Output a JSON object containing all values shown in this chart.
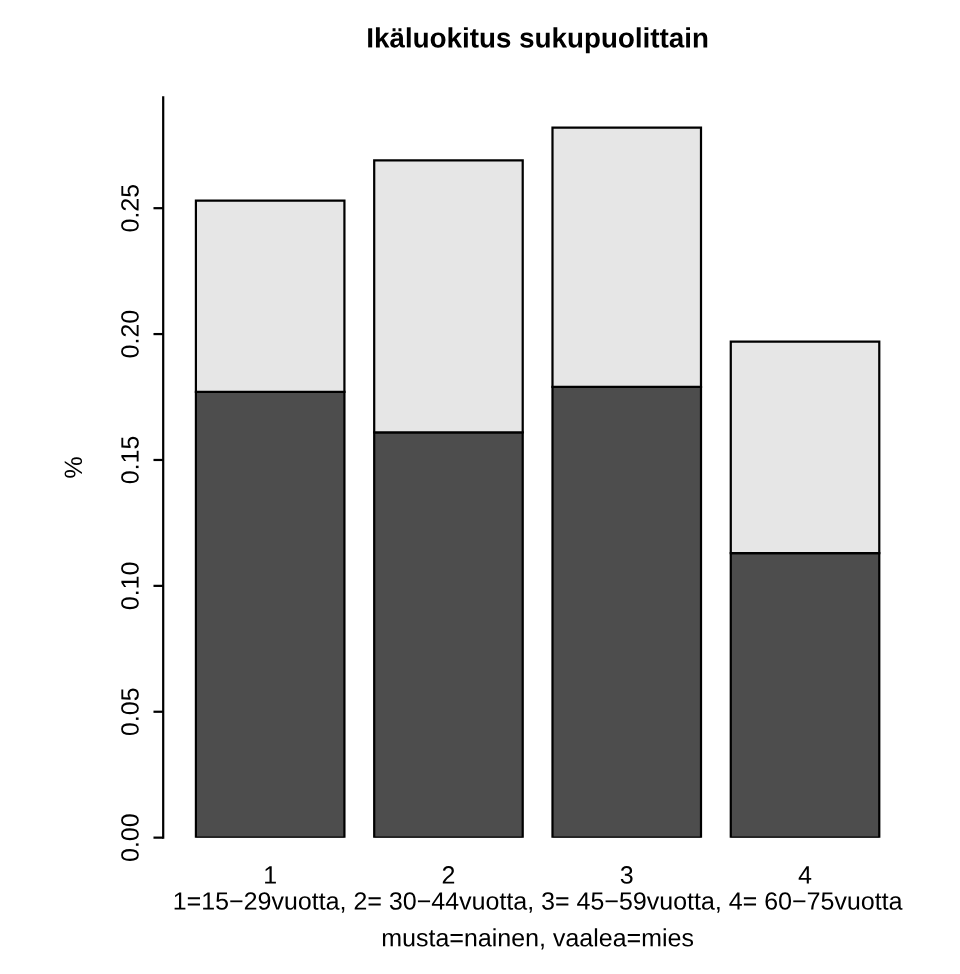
{
  "chart_data": {
    "type": "bar",
    "title": "Ikäluokitus sukupuolittain",
    "ylabel": "%",
    "xlabel": "1=15−29vuotta, 2= 30−44vuotta, 3= 45−59vuotta, 4= 60−75vuotta",
    "annotations": [
      "musta=nainen, vaalea=mies"
    ],
    "categories": [
      "1",
      "2",
      "3",
      "4"
    ],
    "stacked": true,
    "series": [
      {
        "color": "#4d4d4d",
        "values": [
          0.177,
          0.161,
          0.179,
          0.113
        ]
      },
      {
        "color": "#e6e6e6",
        "values": [
          0.076,
          0.108,
          0.103,
          0.084
        ]
      }
    ],
    "ylim": [
      0,
      0.294
    ],
    "yticks": [
      {
        "value": 0,
        "label": "0.00"
      },
      0.05,
      {
        "value": 0.1,
        "label": "0.10"
      },
      0.15,
      {
        "value": 0.2,
        "label": "0.20"
      },
      0.25
    ],
    "grid": false,
    "legend": false
  }
}
